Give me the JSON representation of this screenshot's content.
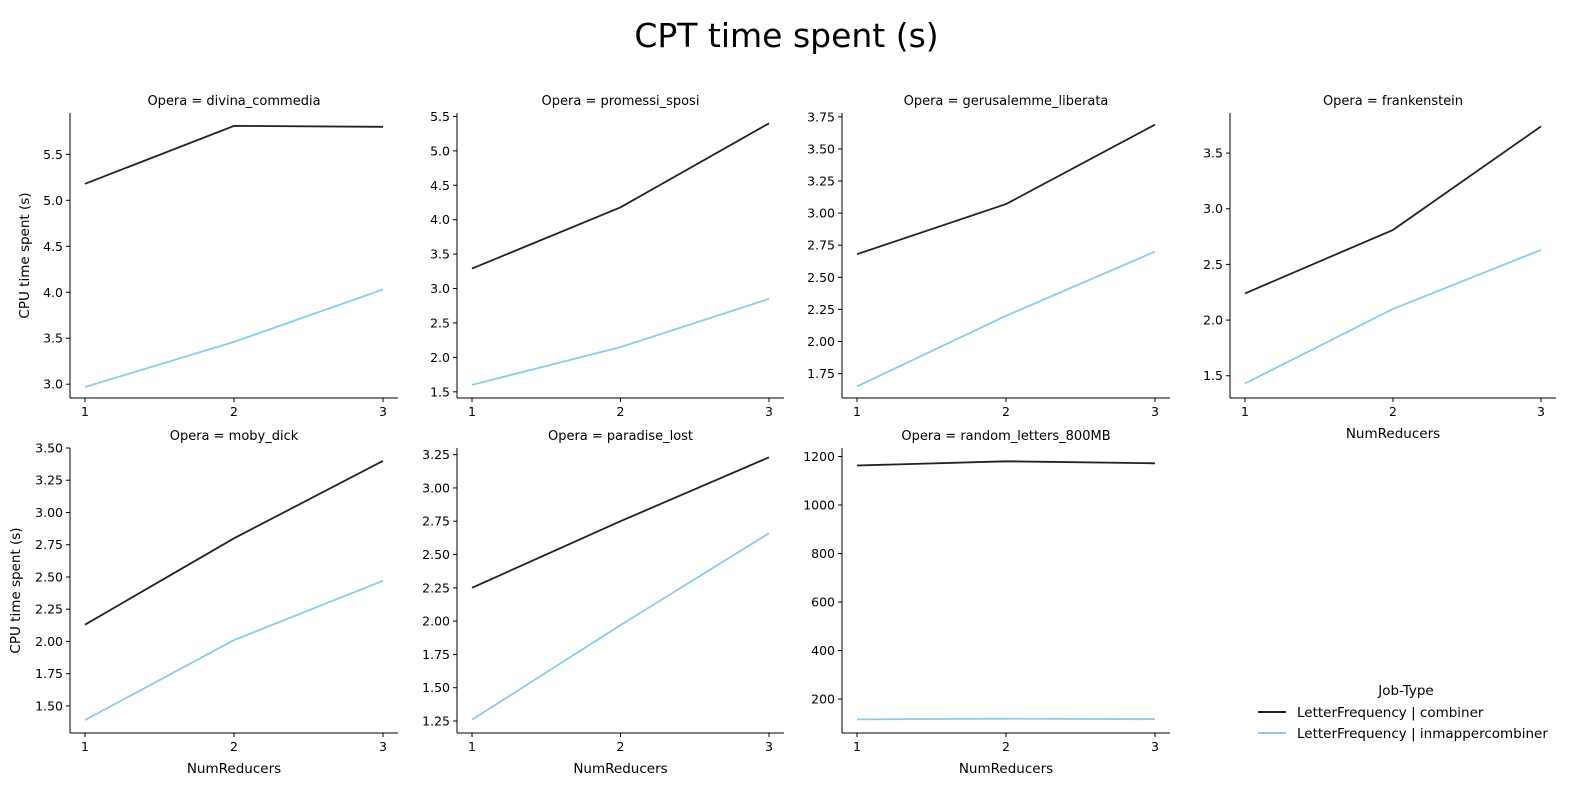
{
  "suptitle": "CPT time spent (s)",
  "colors": {
    "combiner": "#222222",
    "inmappercombiner": "#87ceeb"
  },
  "legend": {
    "title": "Job-Type",
    "placement": "lower-right",
    "entries": [
      "LetterFrequency | combiner",
      "LetterFrequency | inmappercombiner"
    ]
  },
  "chart_data": [
    {
      "type": "line",
      "title": "Opera = divina_commedia",
      "xlabel": "",
      "ylabel": "CPU time spent (s)",
      "x": [
        1,
        2,
        3
      ],
      "xticks": [
        "1",
        "2",
        "3"
      ],
      "ylim": [
        2.85,
        5.95
      ],
      "yticks": [
        "3.0",
        "3.5",
        "4.0",
        "4.5",
        "5.0",
        "5.5"
      ],
      "series": [
        {
          "name": "LetterFrequency | combiner",
          "values": [
            5.18,
            5.81,
            5.8
          ]
        },
        {
          "name": "LetterFrequency | inmappercombiner",
          "values": [
            2.97,
            3.46,
            4.03
          ]
        }
      ]
    },
    {
      "type": "line",
      "title": "Opera = promessi_sposi",
      "xlabel": "",
      "ylabel": "",
      "x": [
        1,
        2,
        3
      ],
      "xticks": [
        "1",
        "2",
        "3"
      ],
      "ylim": [
        1.41,
        5.55
      ],
      "yticks": [
        "1.5",
        "2.0",
        "2.5",
        "3.0",
        "3.5",
        "4.0",
        "4.5",
        "5.0",
        "5.5"
      ],
      "series": [
        {
          "name": "LetterFrequency | combiner",
          "values": [
            3.29,
            4.18,
            5.4
          ]
        },
        {
          "name": "LetterFrequency | inmappercombiner",
          "values": [
            1.6,
            2.15,
            2.85
          ]
        }
      ]
    },
    {
      "type": "line",
      "title": "Opera = gerusalemme_liberata",
      "xlabel": "",
      "ylabel": "",
      "x": [
        1,
        2,
        3
      ],
      "xticks": [
        "1",
        "2",
        "3"
      ],
      "ylim": [
        1.56,
        3.78
      ],
      "yticks": [
        "1.75",
        "2.00",
        "2.25",
        "2.50",
        "2.75",
        "3.00",
        "3.25",
        "3.50",
        "3.75"
      ],
      "series": [
        {
          "name": "LetterFrequency | combiner",
          "values": [
            2.68,
            3.07,
            3.69
          ]
        },
        {
          "name": "LetterFrequency | inmappercombiner",
          "values": [
            1.65,
            2.2,
            2.7
          ]
        }
      ]
    },
    {
      "type": "line",
      "title": "Opera = frankenstein",
      "xlabel": "NumReducers",
      "ylabel": "",
      "x": [
        1,
        2,
        3
      ],
      "xticks": [
        "1",
        "2",
        "3"
      ],
      "ylim": [
        1.3,
        3.86
      ],
      "yticks": [
        "1.5",
        "2.0",
        "2.5",
        "3.0",
        "3.5"
      ],
      "series": [
        {
          "name": "LetterFrequency | combiner",
          "values": [
            2.24,
            2.81,
            3.74
          ]
        },
        {
          "name": "LetterFrequency | inmappercombiner",
          "values": [
            1.43,
            2.1,
            2.63
          ]
        }
      ]
    },
    {
      "type": "line",
      "title": "Opera = moby_dick",
      "xlabel": "NumReducers",
      "ylabel": "CPU time spent (s)",
      "x": [
        1,
        2,
        3
      ],
      "xticks": [
        "1",
        "2",
        "3"
      ],
      "ylim": [
        1.29,
        3.5
      ],
      "yticks": [
        "1.50",
        "1.75",
        "2.00",
        "2.25",
        "2.50",
        "2.75",
        "3.00",
        "3.25",
        "3.50"
      ],
      "series": [
        {
          "name": "LetterFrequency | combiner",
          "values": [
            2.13,
            2.8,
            3.4
          ]
        },
        {
          "name": "LetterFrequency | inmappercombiner",
          "values": [
            1.39,
            2.01,
            2.47
          ]
        }
      ]
    },
    {
      "type": "line",
      "title": "Opera = paradise_lost",
      "xlabel": "NumReducers",
      "ylabel": "",
      "x": [
        1,
        2,
        3
      ],
      "xticks": [
        "1",
        "2",
        "3"
      ],
      "ylim": [
        1.16,
        3.3
      ],
      "yticks": [
        "1.25",
        "1.50",
        "1.75",
        "2.00",
        "2.25",
        "2.50",
        "2.75",
        "3.00",
        "3.25"
      ],
      "series": [
        {
          "name": "LetterFrequency | combiner",
          "values": [
            2.25,
            2.75,
            3.23
          ]
        },
        {
          "name": "LetterFrequency | inmappercombiner",
          "values": [
            1.26,
            1.97,
            2.66
          ]
        }
      ]
    },
    {
      "type": "line",
      "title": "Opera = random_letters_800MB",
      "xlabel": "NumReducers",
      "ylabel": "",
      "x": [
        1,
        2,
        3
      ],
      "xticks": [
        "1",
        "2",
        "3"
      ],
      "ylim": [
        60,
        1235
      ],
      "yticks": [
        "200",
        "400",
        "600",
        "800",
        "1000",
        "1200"
      ],
      "series": [
        {
          "name": "LetterFrequency | combiner",
          "values": [
            1163,
            1180,
            1172
          ]
        },
        {
          "name": "LetterFrequency | inmappercombiner",
          "values": [
            116,
            119,
            117
          ]
        }
      ]
    }
  ]
}
